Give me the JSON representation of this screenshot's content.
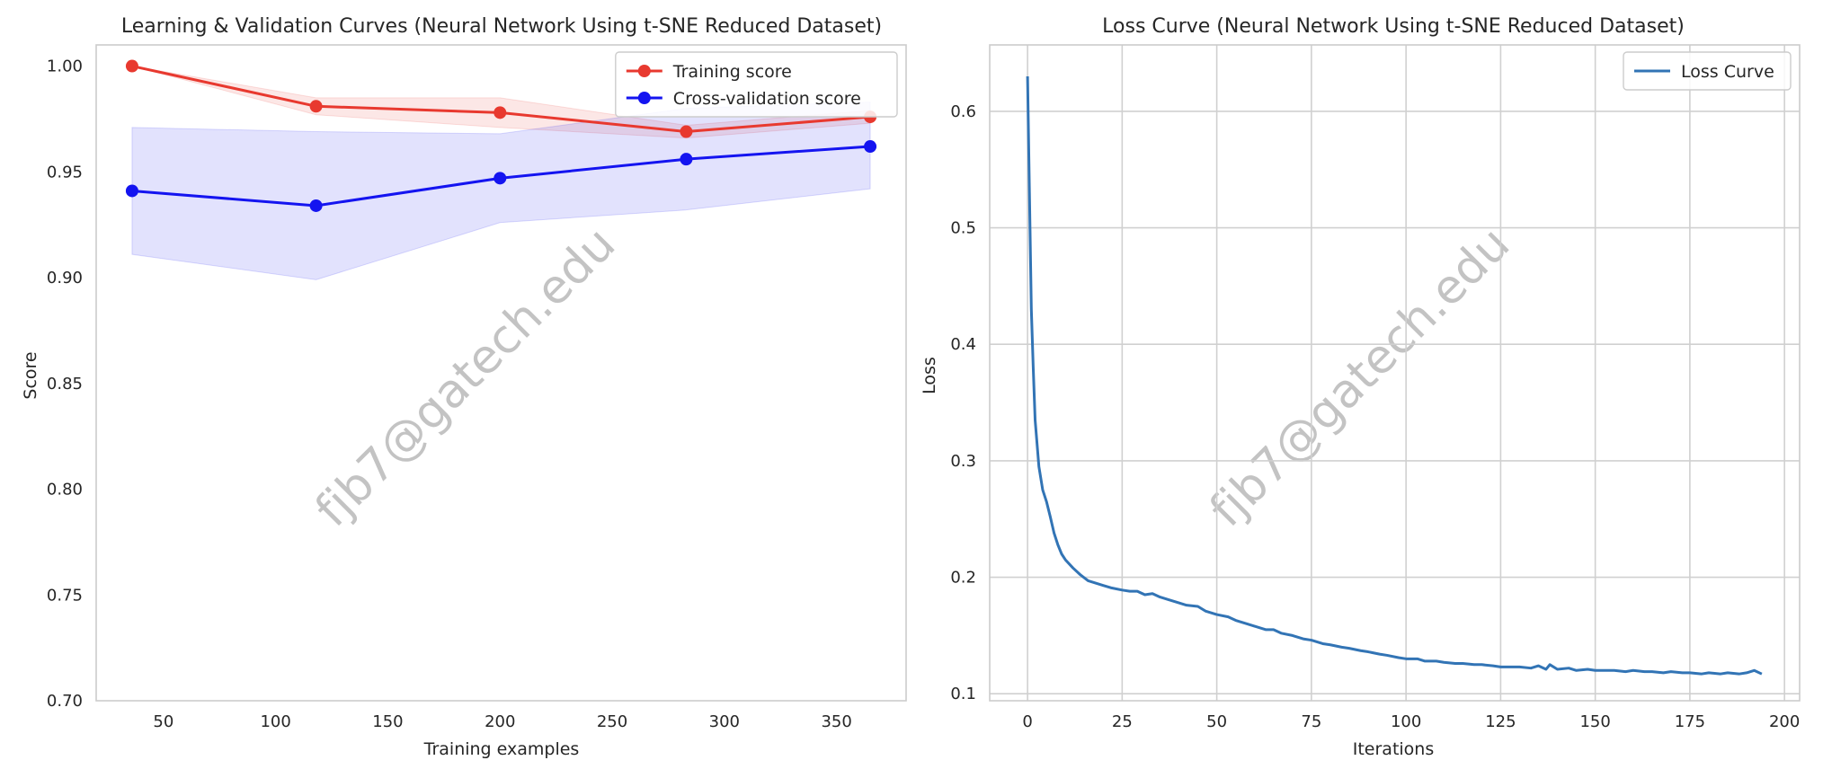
{
  "watermark": "fjb7@gatech.edu",
  "chart_data": [
    {
      "type": "line",
      "title": "Learning & Validation Curves (Neural Network Using t-SNE Reduced Dataset)",
      "xlabel": "Training examples",
      "ylabel": "Score",
      "xlim": [
        20,
        381
      ],
      "ylim": [
        0.7,
        1.01
      ],
      "xticks": [
        50,
        100,
        150,
        200,
        250,
        300,
        350
      ],
      "yticks": [
        0.7,
        0.75,
        0.8,
        0.85,
        0.9,
        0.95,
        1.0
      ],
      "grid": false,
      "legend_position": "top-right",
      "x": [
        36,
        118,
        200,
        283,
        365
      ],
      "series": [
        {
          "name": "Training score",
          "color": "#e8392f",
          "marker": "circle",
          "values": [
            1.0,
            0.981,
            0.978,
            0.969,
            0.976
          ],
          "band_lower": [
            1.0,
            0.977,
            0.971,
            0.966,
            0.973
          ],
          "band_upper": [
            1.0,
            0.985,
            0.985,
            0.972,
            0.979
          ]
        },
        {
          "name": "Cross-validation score",
          "color": "#1414f0",
          "marker": "circle",
          "values": [
            0.941,
            0.934,
            0.947,
            0.956,
            0.962
          ],
          "band_lower": [
            0.911,
            0.899,
            0.926,
            0.932,
            0.942
          ],
          "band_upper": [
            0.971,
            0.969,
            0.968,
            0.98,
            0.983
          ]
        }
      ]
    },
    {
      "type": "line",
      "title": "Loss Curve (Neural Network Using t-SNE Reduced Dataset)",
      "xlabel": "Iterations",
      "ylabel": "Loss",
      "xlim": [
        -10,
        204
      ],
      "ylim": [
        0.094,
        0.657
      ],
      "xticks": [
        0,
        25,
        50,
        75,
        100,
        125,
        150,
        175,
        200
      ],
      "yticks": [
        0.1,
        0.2,
        0.3,
        0.4,
        0.5,
        0.6
      ],
      "grid": true,
      "legend_position": "top-right",
      "series": [
        {
          "name": "Loss Curve",
          "color": "#3274b5",
          "x": [
            0,
            0.5,
            1,
            1.5,
            2,
            2.5,
            3,
            4,
            5,
            6,
            7,
            8,
            9,
            10,
            12,
            14,
            16,
            18,
            20,
            22,
            25,
            27,
            29,
            31,
            33,
            35,
            37,
            40,
            42,
            45,
            47,
            50,
            53,
            55,
            58,
            60,
            63,
            65,
            67,
            70,
            73,
            75,
            78,
            80,
            83,
            85,
            88,
            90,
            93,
            95,
            98,
            100,
            103,
            105,
            108,
            110,
            113,
            115,
            118,
            120,
            123,
            125,
            128,
            130,
            133,
            135,
            137,
            138,
            140,
            143,
            145,
            148,
            150,
            153,
            155,
            158,
            160,
            163,
            165,
            168,
            170,
            173,
            175,
            178,
            180,
            183,
            185,
            188,
            190,
            192,
            194
          ],
          "values": [
            0.63,
            0.53,
            0.43,
            0.38,
            0.335,
            0.315,
            0.295,
            0.275,
            0.265,
            0.252,
            0.238,
            0.228,
            0.22,
            0.215,
            0.208,
            0.202,
            0.197,
            0.195,
            0.193,
            0.191,
            0.189,
            0.188,
            0.188,
            0.185,
            0.186,
            0.183,
            0.181,
            0.178,
            0.176,
            0.175,
            0.171,
            0.168,
            0.166,
            0.163,
            0.16,
            0.158,
            0.155,
            0.155,
            0.152,
            0.15,
            0.147,
            0.146,
            0.143,
            0.142,
            0.14,
            0.139,
            0.137,
            0.136,
            0.134,
            0.133,
            0.131,
            0.13,
            0.13,
            0.128,
            0.128,
            0.127,
            0.126,
            0.126,
            0.125,
            0.125,
            0.124,
            0.123,
            0.123,
            0.123,
            0.122,
            0.124,
            0.121,
            0.125,
            0.121,
            0.122,
            0.12,
            0.121,
            0.12,
            0.12,
            0.12,
            0.119,
            0.12,
            0.119,
            0.119,
            0.118,
            0.119,
            0.118,
            0.118,
            0.117,
            0.118,
            0.117,
            0.118,
            0.117,
            0.118,
            0.12,
            0.117
          ]
        }
      ]
    }
  ]
}
